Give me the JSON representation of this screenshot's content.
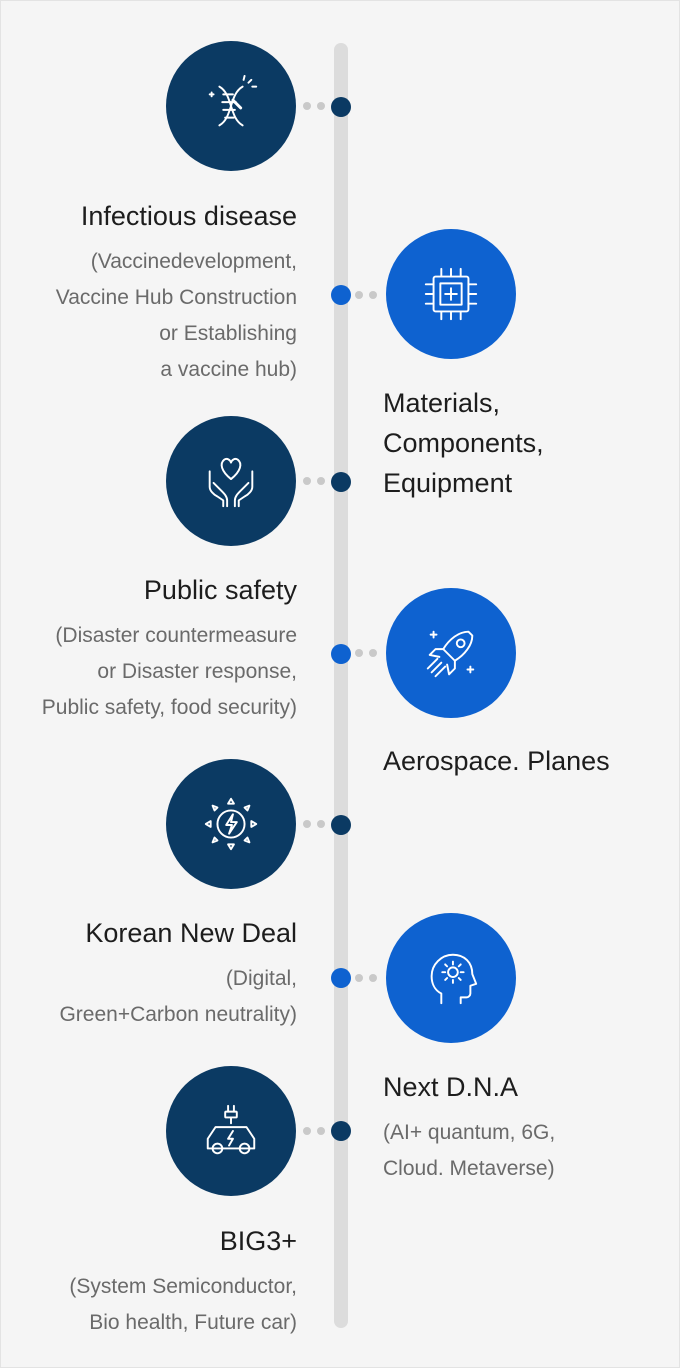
{
  "items": [
    {
      "title": "Infectious disease",
      "desc": [
        "(Vaccinedevelopment,",
        "Vaccine Hub Construction",
        "or Establishing",
        "a vaccine hub)"
      ],
      "icon": "dna-icon"
    },
    {
      "title": [
        "Materials,",
        "Components,",
        "Equipment"
      ],
      "icon": "chip-icon"
    },
    {
      "title": "Public safety",
      "desc": [
        "(Disaster countermeasure",
        "or Disaster response,",
        "Public safety, food security)"
      ],
      "icon": "hands-heart-icon"
    },
    {
      "title": "Aerospace. Planes",
      "icon": "rocket-icon"
    },
    {
      "title": "Korean New Deal",
      "desc": [
        "(Digital,",
        "Green+Carbon neutrality)"
      ],
      "icon": "sun-bolt-icon"
    },
    {
      "title": "Next D.N.A",
      "desc": [
        "(AI+ quantum, 6G,",
        "Cloud. Metaverse)"
      ],
      "icon": "head-gear-icon"
    },
    {
      "title": "BIG3+",
      "desc": [
        "(System Semiconductor,",
        "Bio health, Future car)"
      ],
      "icon": "electric-car-icon"
    }
  ],
  "colors": {
    "navy": "#0b3a63",
    "blue": "#0e62d0",
    "timeline": "#dcdcdc",
    "background": "#f5f5f5"
  }
}
